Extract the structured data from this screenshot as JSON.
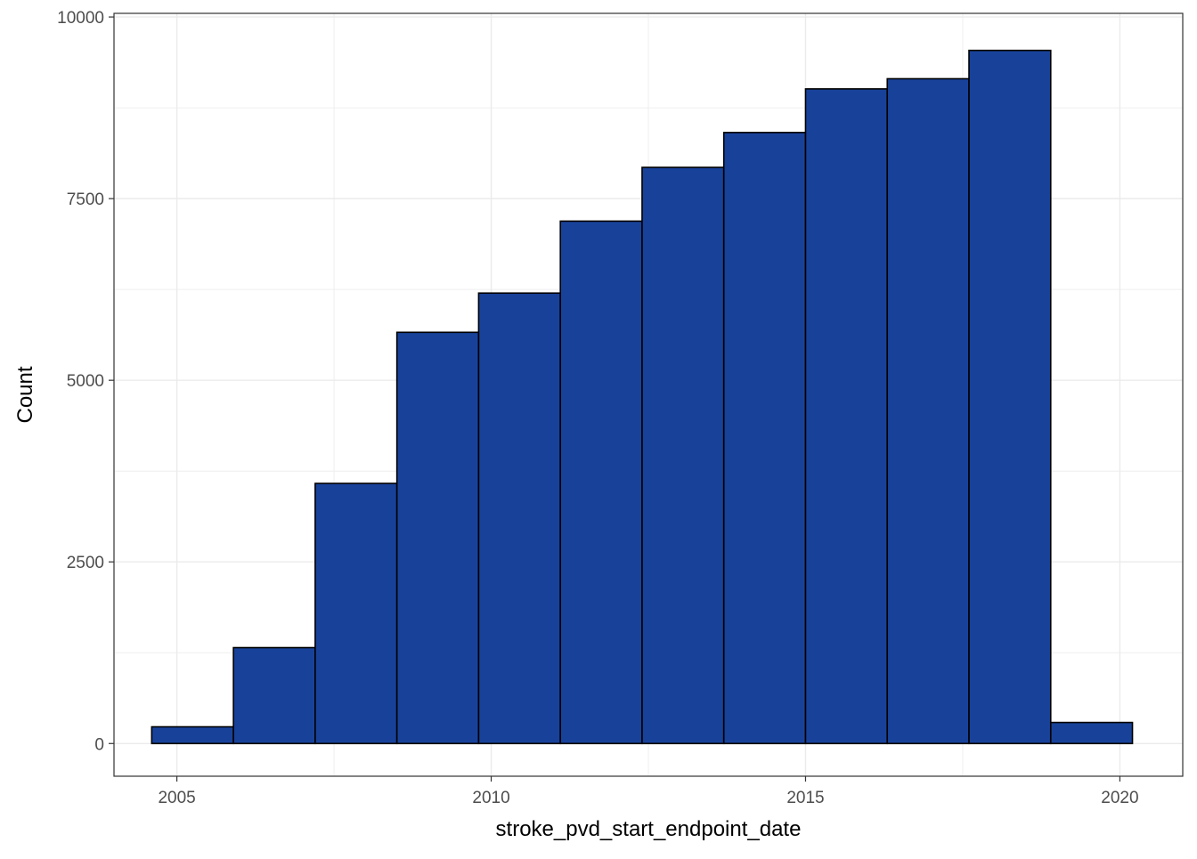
{
  "chart_data": {
    "type": "bar",
    "subtype": "histogram",
    "title": "",
    "xlabel": "stroke_pvd_start_endpoint_date",
    "ylabel": "Count",
    "xlim": [
      2004.0,
      2021.0
    ],
    "ylim": [
      -450,
      10050
    ],
    "x_ticks": [
      2005,
      2010,
      2015,
      2020
    ],
    "x_tick_labels": [
      "2005",
      "2010",
      "2015",
      "2020"
    ],
    "y_ticks": [
      0,
      2500,
      5000,
      7500,
      10000
    ],
    "y_tick_labels": [
      "0",
      "2500",
      "5000",
      "7500",
      "10000"
    ],
    "grid": true,
    "legend": "none",
    "bins": [
      {
        "x_start": 2004.6,
        "x_end": 2005.9,
        "count": 230
      },
      {
        "x_start": 2005.9,
        "x_end": 2007.2,
        "count": 1320
      },
      {
        "x_start": 2007.2,
        "x_end": 2008.5,
        "count": 3580
      },
      {
        "x_start": 2008.5,
        "x_end": 2009.8,
        "count": 5660
      },
      {
        "x_start": 2009.8,
        "x_end": 2011.1,
        "count": 6200
      },
      {
        "x_start": 2011.1,
        "x_end": 2012.4,
        "count": 7190
      },
      {
        "x_start": 2012.4,
        "x_end": 2013.7,
        "count": 7930
      },
      {
        "x_start": 2013.7,
        "x_end": 2015.0,
        "count": 8410
      },
      {
        "x_start": 2015.0,
        "x_end": 2016.3,
        "count": 9010
      },
      {
        "x_start": 2016.3,
        "x_end": 2017.6,
        "count": 9150
      },
      {
        "x_start": 2017.6,
        "x_end": 2018.9,
        "count": 9540
      },
      {
        "x_start": 2018.9,
        "x_end": 2020.2,
        "count": 290
      }
    ],
    "colors": {
      "bar_fill": "#18429a",
      "bar_outline": "#000000",
      "grid": "#ebebeb",
      "panel_border": "#333333"
    }
  }
}
